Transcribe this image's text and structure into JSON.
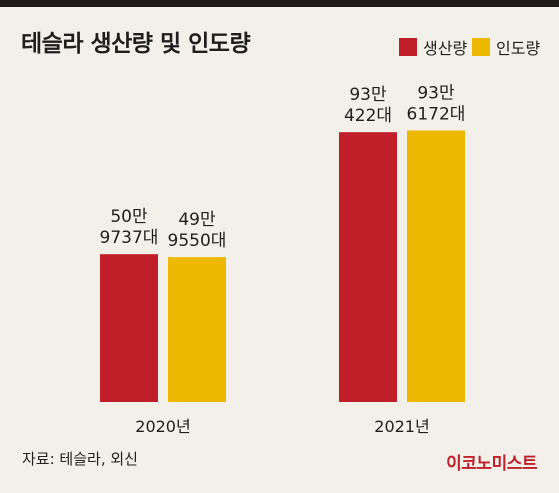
{
  "title": "테슬라 생산량 및 인도량",
  "source": "자료: 테슬라, 외신",
  "brand": "이코노미스트",
  "colors": {
    "background": "#f2f0e9",
    "production": "#c01f2a",
    "delivery": "#ecb800",
    "brand": "#c01f2a",
    "text": "#1f1f1f"
  },
  "legend": [
    {
      "name": "생산량",
      "color": "#c01f2a"
    },
    {
      "name": "인도량",
      "color": "#ecb800"
    }
  ],
  "chart_data": {
    "type": "bar",
    "title": "테슬라 생산량 및 인도량",
    "categories": [
      "2020년",
      "2021년"
    ],
    "series": [
      {
        "name": "생산량",
        "values": [
          509737,
          930422
        ],
        "labels": [
          [
            "50만",
            "9737대"
          ],
          [
            "93만",
            "422대"
          ]
        ]
      },
      {
        "name": "인도량",
        "values": [
          499550,
          936172
        ],
        "labels": [
          [
            "49만",
            "9550대"
          ],
          [
            "93만",
            "6172대"
          ]
        ]
      }
    ],
    "ylim": [
      0,
      1000000
    ],
    "grid": false,
    "legend_position": "top-right"
  }
}
